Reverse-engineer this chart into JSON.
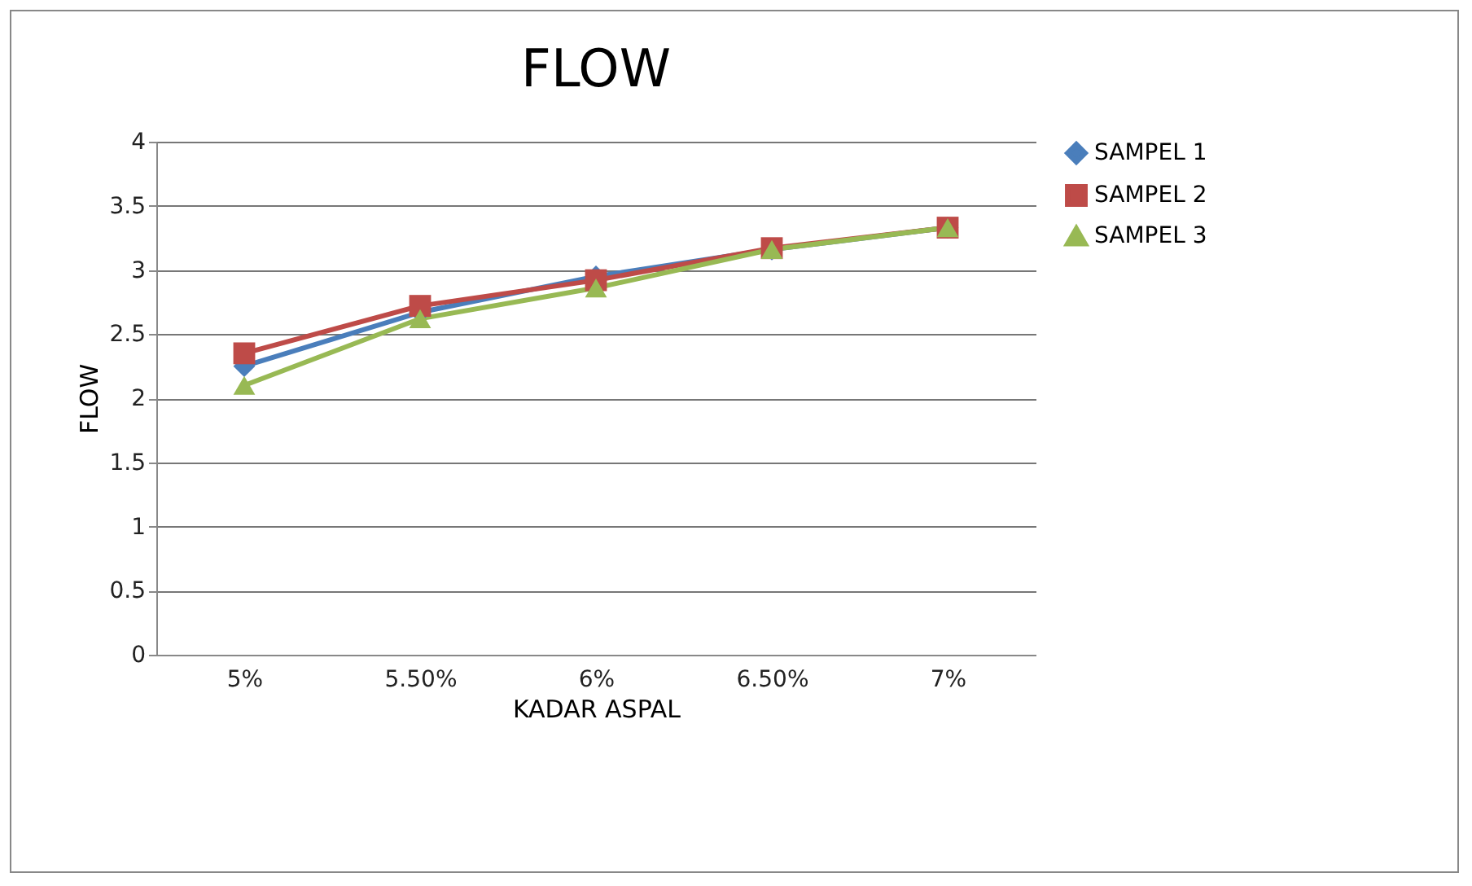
{
  "chart_data": {
    "type": "line",
    "title": "FLOW",
    "xlabel": "KADAR ASPAL",
    "ylabel": "FLOW",
    "categories": [
      "5%",
      "5.50%",
      "6%",
      "6.50%",
      "7%"
    ],
    "series": [
      {
        "name": "SAMPEL 1",
        "color": "#4a7ebb",
        "marker": "diamond",
        "values": [
          2.25,
          2.67,
          2.95,
          3.16,
          3.33
        ]
      },
      {
        "name": "SAMPEL 2",
        "color": "#be4b48",
        "marker": "square",
        "values": [
          2.35,
          2.72,
          2.92,
          3.17,
          3.33
        ]
      },
      {
        "name": "SAMPEL 3",
        "color": "#98b954",
        "marker": "triangle",
        "values": [
          2.1,
          2.62,
          2.86,
          3.16,
          3.33
        ]
      }
    ],
    "ylim": [
      0,
      4
    ],
    "yticks": [
      0,
      0.5,
      1,
      1.5,
      2,
      2.5,
      3,
      3.5,
      4
    ],
    "grid": "y",
    "legend": "right",
    "line_style": "solid"
  }
}
